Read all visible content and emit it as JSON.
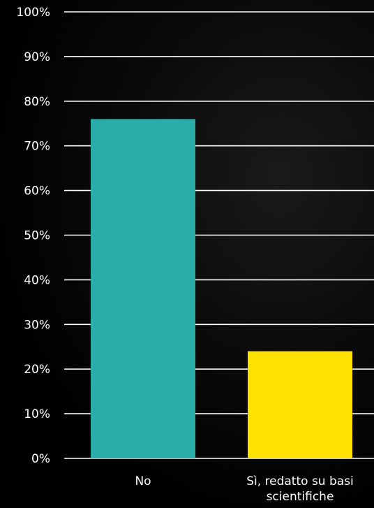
{
  "chart_data": {
    "type": "bar",
    "title": "",
    "xlabel": "",
    "ylabel": "",
    "categories": [
      [
        "No"
      ],
      [
        "Sì, redatto su basi",
        "scientifiche"
      ]
    ],
    "values": [
      76,
      24
    ],
    "value_unit": "%",
    "ylim": [
      0,
      100
    ],
    "yticks": [
      0,
      10,
      20,
      30,
      40,
      50,
      60,
      70,
      80,
      90,
      100
    ],
    "ytick_labels": [
      "0%",
      "10%",
      "20%",
      "30%",
      "40%",
      "50%",
      "60%",
      "70%",
      "80%",
      "90%",
      "100%"
    ],
    "bar_colors": [
      "#2aaca9",
      "#ffe100"
    ],
    "grid": true,
    "background_color": "#000000",
    "text_color": "#ffffff"
  }
}
